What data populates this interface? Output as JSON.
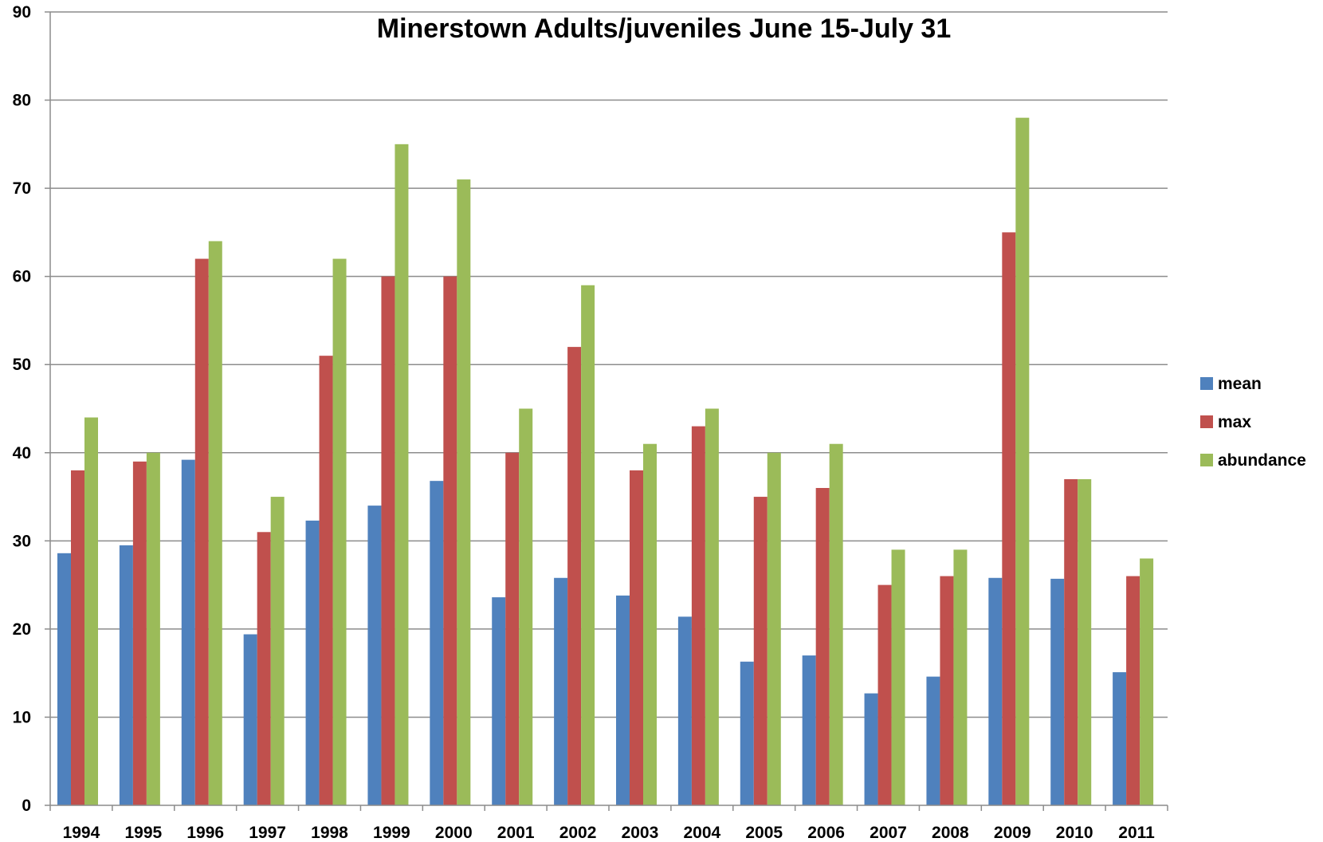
{
  "chart_data": {
    "type": "bar",
    "title": "Minerstown Adults/juveniles June 15-July 31",
    "xlabel": "",
    "ylabel": "",
    "ylim": [
      0,
      90
    ],
    "yticks": [
      "0",
      "10",
      "20",
      "30",
      "40",
      "50",
      "60",
      "70",
      "80",
      "90"
    ],
    "categories": [
      "1994",
      "1995",
      "1996",
      "1997",
      "1998",
      "1999",
      "2000",
      "2001",
      "2002",
      "2003",
      "2004",
      "2005",
      "2006",
      "2007",
      "2008",
      "2009",
      "2010",
      "2011"
    ],
    "series": [
      {
        "name": "mean",
        "color": "#4F81BD",
        "values": [
          28.6,
          29.5,
          39.2,
          19.4,
          32.3,
          34.0,
          36.8,
          23.6,
          25.8,
          23.8,
          21.4,
          16.3,
          17.0,
          12.7,
          14.6,
          25.8,
          25.7,
          15.1
        ]
      },
      {
        "name": "max",
        "color": "#C0504D",
        "values": [
          38,
          39,
          62,
          31,
          51,
          60,
          60,
          40,
          52,
          38,
          43,
          35,
          36,
          25,
          26,
          65,
          37,
          26
        ]
      },
      {
        "name": "abundance",
        "color": "#9BBB59",
        "values": [
          44,
          40,
          64,
          35,
          62,
          75,
          71,
          45,
          59,
          41,
          45,
          40,
          41,
          29,
          29,
          78,
          37,
          28
        ]
      }
    ],
    "grid": true,
    "legend_position": "right"
  }
}
